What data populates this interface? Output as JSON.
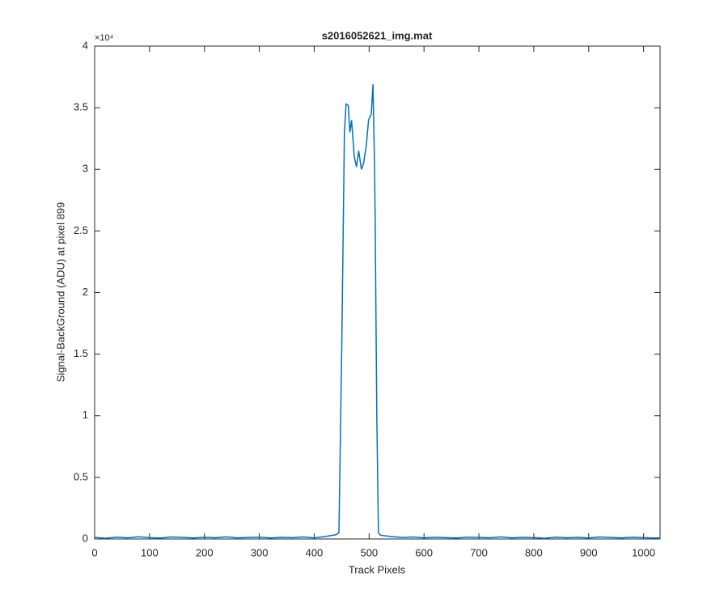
{
  "chart_data": {
    "type": "line",
    "title": "s2016052621_img.mat",
    "x_label": "Track Pixels",
    "y_label": "Signal-BackGround (ADU) at pixel 899",
    "y_exponent_label": "×10⁴",
    "xlim": [
      0,
      1030
    ],
    "xticks": [
      0,
      100,
      200,
      300,
      400,
      500,
      600,
      700,
      800,
      900,
      1000
    ],
    "ylim": [
      0,
      40000
    ],
    "yticks": [
      0,
      {
        "value": 5000,
        "label": "0.5"
      },
      {
        "value": 10000,
        "label": "1"
      },
      {
        "value": 15000,
        "label": "1.5"
      },
      {
        "value": 20000,
        "label": "2"
      },
      {
        "value": 25000,
        "label": "2.5"
      },
      {
        "value": 30000,
        "label": "3"
      },
      {
        "value": 35000,
        "label": "3.5"
      },
      {
        "value": 40000,
        "label": "4"
      }
    ],
    "series": [
      {
        "color": "#0072bd",
        "x": [
          0,
          20,
          40,
          60,
          80,
          100,
          120,
          140,
          160,
          180,
          200,
          220,
          240,
          260,
          280,
          300,
          320,
          340,
          360,
          380,
          400,
          420,
          440,
          445,
          450,
          455,
          458,
          462,
          465,
          468,
          473,
          477,
          481,
          486,
          490,
          495,
          499,
          504,
          507,
          510,
          511,
          514,
          517,
          521,
          540,
          560,
          580,
          600,
          620,
          640,
          660,
          680,
          700,
          720,
          740,
          760,
          780,
          800,
          820,
          840,
          860,
          880,
          900,
          920,
          940,
          960,
          980,
          1000,
          1020,
          1030
        ],
        "values": [
          120,
          60,
          150,
          90,
          180,
          110,
          70,
          160,
          130,
          80,
          140,
          100,
          170,
          90,
          120,
          150,
          80,
          130,
          110,
          160,
          90,
          200,
          350,
          500,
          15000,
          33000,
          35300,
          35200,
          33000,
          34000,
          31000,
          30200,
          31500,
          30000,
          30500,
          32000,
          34000,
          34500,
          36900,
          30000,
          26000,
          10000,
          500,
          300,
          200,
          120,
          160,
          90,
          140,
          110,
          80,
          150,
          120,
          100,
          170,
          90,
          130,
          110,
          60,
          150,
          100,
          130,
          80,
          160,
          120,
          90,
          140,
          110,
          70,
          100
        ]
      }
    ]
  }
}
